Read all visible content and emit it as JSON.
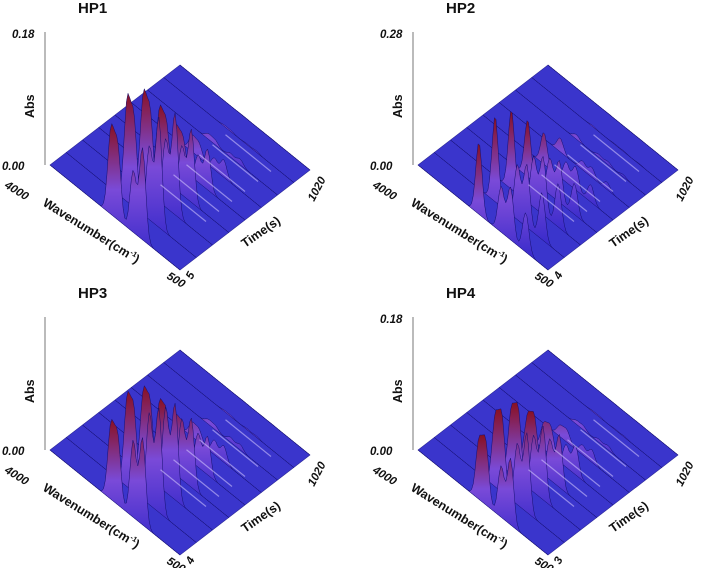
{
  "colors": {
    "low": "#2a24c8",
    "mid": "#7a4ad8",
    "high": "#8a1020",
    "highlight": "#d9ccff"
  },
  "chart_data": [
    {
      "type": "surface3d",
      "title": "HP1",
      "zlabel": "Abs",
      "xlabel_prefix": "Wavenumber(cm",
      "xlabel_sup": "-1",
      "xlabel_suffix": ")",
      "ylabel": "Time(s)",
      "z_ticks": [
        "0.18",
        "0.00"
      ],
      "x_ticks": [
        "4000",
        "500"
      ],
      "y_ticks": [
        "5",
        "1020"
      ],
      "zlim": [
        0,
        0.18
      ],
      "wavenumber_range": [
        4000,
        500
      ],
      "time_range": [
        5,
        1020
      ],
      "peaks": [
        {
          "wavenumber": 2360,
          "abs": 0.16
        },
        {
          "wavenumber": 2180,
          "abs": 0.14
        },
        {
          "wavenumber": 1760,
          "abs": 0.12
        },
        {
          "wavenumber": 1510,
          "abs": 0.18
        }
      ]
    },
    {
      "type": "surface3d",
      "title": "HP2",
      "zlabel": "Abs",
      "xlabel_prefix": "Wavenumber(cm",
      "xlabel_sup": "-1",
      "xlabel_suffix": ")",
      "ylabel": "Time(s)",
      "z_ticks": [
        "0.28",
        "0.00"
      ],
      "x_ticks": [
        "4000",
        "500"
      ],
      "y_ticks": [
        "4",
        "1020"
      ],
      "zlim": [
        0,
        0.28
      ],
      "wavenumber_range": [
        4000,
        500
      ],
      "time_range": [
        4,
        1020
      ],
      "peaks": [
        {
          "wavenumber": 2360,
          "abs": 0.22
        },
        {
          "wavenumber": 1760,
          "abs": 0.14
        },
        {
          "wavenumber": 1510,
          "abs": 0.16
        },
        {
          "wavenumber": 1100,
          "abs": 0.12
        }
      ]
    },
    {
      "type": "surface3d",
      "title": "HP3",
      "zlabel": "Abs",
      "xlabel_prefix": "Wavenumber(cm",
      "xlabel_sup": "-1",
      "xlabel_suffix": ")",
      "ylabel": "Time(s)",
      "z_ticks": [
        "0.00"
      ],
      "x_ticks": [
        "4000",
        "500"
      ],
      "y_ticks": [
        "4",
        "1020"
      ],
      "zlim": [
        0,
        0.18
      ],
      "wavenumber_range": [
        4000,
        500
      ],
      "time_range": [
        4,
        1020
      ],
      "peaks": [
        {
          "wavenumber": 2360,
          "abs": 0.14
        },
        {
          "wavenumber": 2180,
          "abs": 0.13
        },
        {
          "wavenumber": 1760,
          "abs": 0.15
        },
        {
          "wavenumber": 1510,
          "abs": 0.17
        }
      ]
    },
    {
      "type": "surface3d",
      "title": "HP4",
      "zlabel": "Abs",
      "xlabel_prefix": "Wavenumber(cm",
      "xlabel_sup": "-1",
      "xlabel_suffix": ")",
      "ylabel": "Time(s)",
      "z_ticks": [
        "0.18",
        "0.00"
      ],
      "x_ticks": [
        "4000",
        "500"
      ],
      "y_ticks": [
        "3",
        "1020"
      ],
      "zlim": [
        0,
        0.18
      ],
      "wavenumber_range": [
        4000,
        500
      ],
      "time_range": [
        3,
        1020
      ],
      "peaks": [
        {
          "wavenumber": 2360,
          "abs": 0.11
        },
        {
          "wavenumber": 2180,
          "abs": 0.12
        },
        {
          "wavenumber": 1760,
          "abs": 0.1
        },
        {
          "wavenumber": 1510,
          "abs": 0.13
        }
      ]
    }
  ]
}
